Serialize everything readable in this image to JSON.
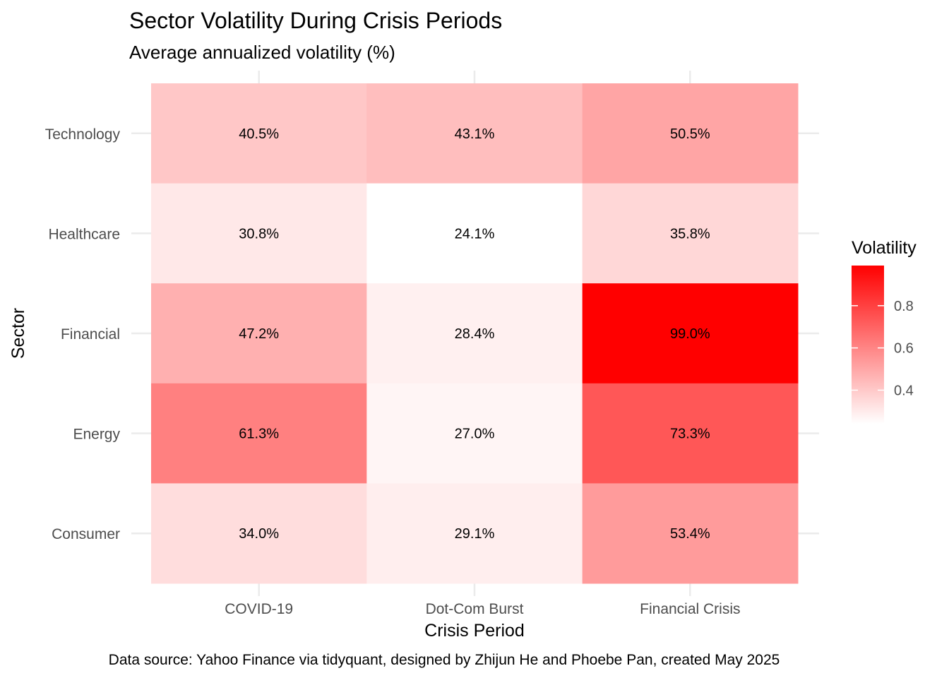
{
  "chart_data": {
    "type": "heatmap",
    "title": "Sector Volatility During Crisis Periods",
    "subtitle": "Average annualized volatility (%)",
    "xlabel": "Crisis Period",
    "ylabel": "Sector",
    "x_categories": [
      "COVID-19",
      "Dot-Com Burst",
      "Financial Crisis"
    ],
    "y_categories": [
      "Technology",
      "Healthcare",
      "Financial",
      "Energy",
      "Consumer"
    ],
    "values": [
      [
        0.405,
        0.431,
        0.505
      ],
      [
        0.308,
        0.241,
        0.358
      ],
      [
        0.472,
        0.284,
        0.99
      ],
      [
        0.613,
        0.27,
        0.733
      ],
      [
        0.34,
        0.291,
        0.534
      ]
    ],
    "labels": [
      [
        "40.5%",
        "43.1%",
        "50.5%"
      ],
      [
        "30.8%",
        "24.1%",
        "35.8%"
      ],
      [
        "47.2%",
        "28.4%",
        "99.0%"
      ],
      [
        "61.3%",
        "27.0%",
        "73.3%"
      ],
      [
        "34.0%",
        "29.1%",
        "53.4%"
      ]
    ],
    "legend": {
      "title": "Volatility",
      "ticks": [
        "0.4",
        "0.6",
        "0.8"
      ],
      "tick_values": [
        0.4,
        0.6,
        0.8
      ],
      "range": [
        0.241,
        0.99
      ],
      "low_color": "#ffffff",
      "high_color": "#ff0000",
      "placement": "right"
    },
    "grid": true,
    "caption": "Data source: Yahoo Finance via tidyquant, designed by Zhijun He and Phoebe Pan, created May 2025"
  }
}
